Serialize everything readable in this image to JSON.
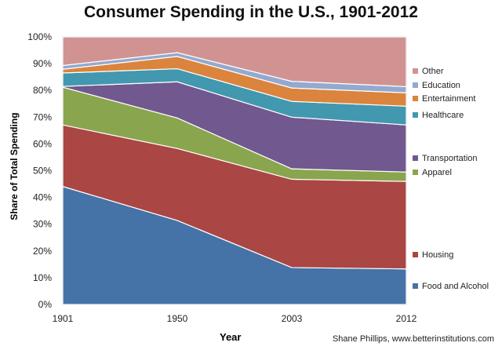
{
  "chart_data": {
    "type": "area",
    "stacked": true,
    "title": "Consumer Spending in the U.S., 1901-2012",
    "xlabel": "Year",
    "ylabel": "Share of Total Spending",
    "categories": [
      "1901",
      "1950",
      "2003",
      "2012"
    ],
    "ylim": [
      0,
      100
    ],
    "yticks": [
      "0%",
      "10%",
      "20%",
      "30%",
      "40%",
      "50%",
      "60%",
      "70%",
      "80%",
      "90%",
      "100%"
    ],
    "legend_position": "right",
    "series": [
      {
        "name": "Food and Alcohol",
        "color": "#4572a7",
        "values": [
          44.1,
          31.4,
          13.8,
          13.3
        ]
      },
      {
        "name": "Housing",
        "color": "#aa4643",
        "values": [
          23.0,
          26.9,
          33.0,
          32.7
        ]
      },
      {
        "name": "Apparel",
        "color": "#89a54e",
        "values": [
          14.1,
          11.4,
          3.9,
          3.5
        ]
      },
      {
        "name": "Transportation",
        "color": "#71588f",
        "values": [
          0.3,
          13.5,
          19.3,
          17.6
        ]
      },
      {
        "name": "Healthcare",
        "color": "#4198af",
        "values": [
          5.0,
          4.9,
          5.9,
          7.0
        ]
      },
      {
        "name": "Entertainment",
        "color": "#db843d",
        "values": [
          1.4,
          4.6,
          5.0,
          5.0
        ]
      },
      {
        "name": "Education",
        "color": "#93a9cf",
        "values": [
          1.4,
          1.4,
          2.5,
          2.3
        ]
      },
      {
        "name": "Other",
        "color": "#d19392",
        "values": [
          10.7,
          5.9,
          16.6,
          18.6
        ]
      }
    ]
  },
  "credit": "Shane Phillips, www.betterinstitutions.com"
}
